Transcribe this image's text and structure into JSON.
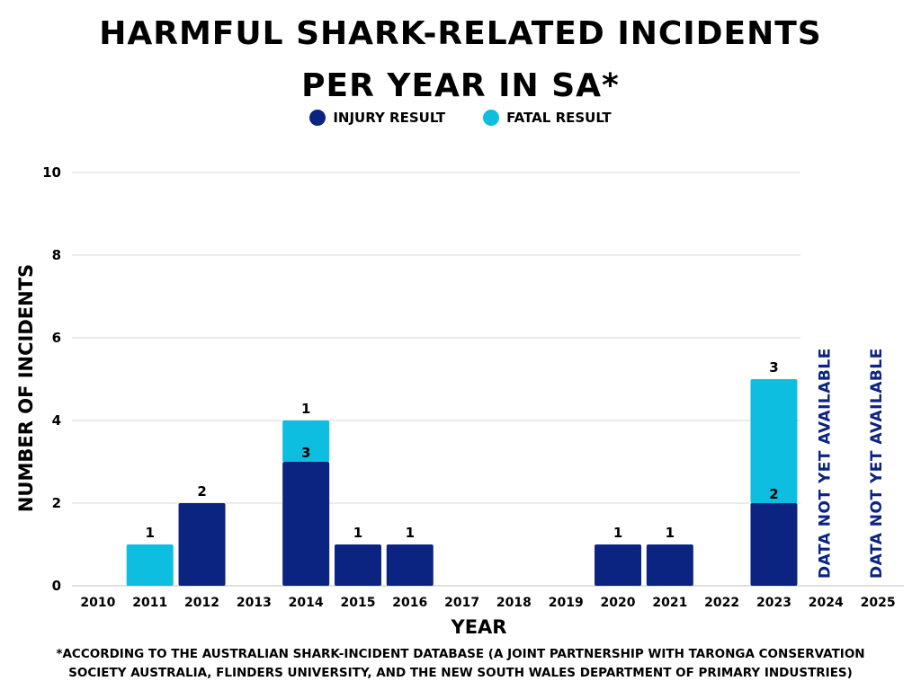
{
  "title_lines": [
    "Harmful shark-related incidents",
    "per year in SA*"
  ],
  "colors": {
    "injury": "#0b2381",
    "fatal": "#0dbee0",
    "grid": "#d9d9d9",
    "unavailable_text": "#0b2381"
  },
  "footnote_lines": [
    "*According to the Australian Shark-Incident Database (a joint partnership with Taronga Conservation",
    "Society Australia,  Flinders University, and the New South Wales Department of Primary Industries)"
  ],
  "chart_data": {
    "type": "bar",
    "stacked": true,
    "title": "Harmful shark-related incidents per year in SA*",
    "xlabel": "Year",
    "ylabel": "Number of incidents",
    "ylim": [
      0,
      10
    ],
    "yticks": [
      0,
      2,
      4,
      6,
      8,
      10
    ],
    "grid": true,
    "legend_position": "top-center",
    "categories": [
      "2010",
      "2011",
      "2012",
      "2013",
      "2014",
      "2015",
      "2016",
      "2017",
      "2018",
      "2019",
      "2020",
      "2021",
      "2022",
      "2023",
      "2024",
      "2025"
    ],
    "series": [
      {
        "name": "Injury result",
        "values": [
          0,
          0,
          2,
          0,
          3,
          1,
          1,
          0,
          0,
          0,
          1,
          1,
          0,
          2,
          null,
          null
        ]
      },
      {
        "name": "Fatal result",
        "values": [
          0,
          1,
          0,
          0,
          1,
          0,
          0,
          0,
          0,
          0,
          0,
          0,
          0,
          3,
          null,
          null
        ]
      }
    ],
    "annotations": [
      {
        "category": "2024",
        "text": "Data not yet available"
      },
      {
        "category": "2025",
        "text": "Data not yet available"
      }
    ]
  }
}
